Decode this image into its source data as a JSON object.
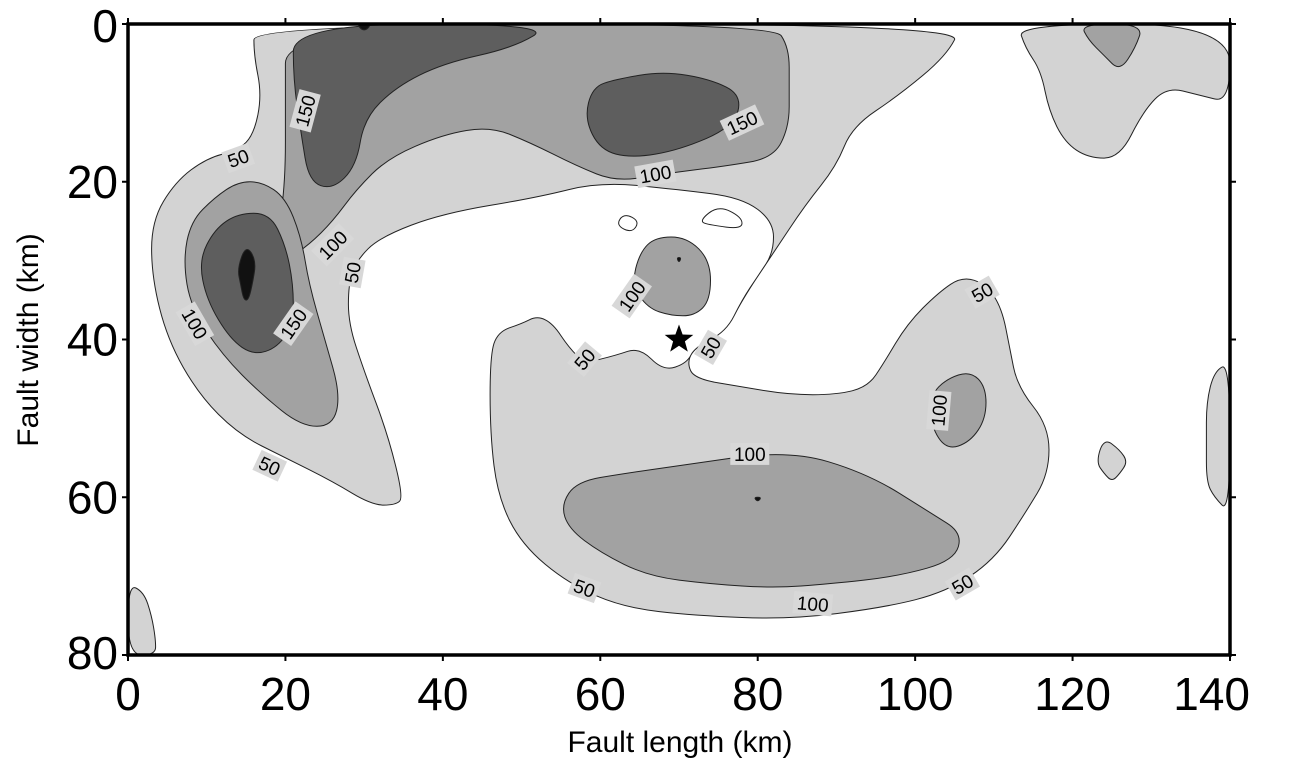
{
  "chart_data": {
    "type": "contour",
    "xlabel": "Fault length (km)",
    "ylabel": "Fault width (km)",
    "xlim": [
      0,
      140
    ],
    "ylim": [
      0,
      80
    ],
    "y_inverted": true,
    "x_ticks": [
      "0",
      "20",
      "40",
      "60",
      "80",
      "100",
      "120",
      "140"
    ],
    "y_ticks": [
      "0",
      "20",
      "40",
      "60",
      "80"
    ],
    "contour_levels": [
      50,
      100,
      150
    ],
    "fill_colors": {
      "below_50": "#ffffff",
      "50_100": "#d3d3d3",
      "100_150": "#a2a2a2",
      "150_200": "#5e5e5e",
      "above_200": "#111111"
    },
    "contour_labels": [
      {
        "text": "150",
        "x": 22.5,
        "y": 11,
        "angle": -75
      },
      {
        "text": "50",
        "x": 14,
        "y": 17,
        "angle": -20
      },
      {
        "text": "100",
        "x": 26,
        "y": 28,
        "angle": -45
      },
      {
        "text": "50",
        "x": 28.5,
        "y": 31.5,
        "angle": -80
      },
      {
        "text": "100",
        "x": 8.5,
        "y": 38,
        "angle": 60
      },
      {
        "text": "150",
        "x": 21,
        "y": 38,
        "angle": -55
      },
      {
        "text": "50",
        "x": 18,
        "y": 56,
        "angle": 25
      },
      {
        "text": "150",
        "x": 78,
        "y": 12.5,
        "angle": -25
      },
      {
        "text": "100",
        "x": 67,
        "y": 19,
        "angle": -10
      },
      {
        "text": "100",
        "x": 64,
        "y": 34.5,
        "angle": -55
      },
      {
        "text": "50",
        "x": 74,
        "y": 41,
        "angle": -60
      },
      {
        "text": "50",
        "x": 58,
        "y": 42.5,
        "angle": -50
      },
      {
        "text": "50",
        "x": 108.5,
        "y": 34,
        "angle": -30
      },
      {
        "text": "100",
        "x": 103,
        "y": 49,
        "angle": -85
      },
      {
        "text": "100",
        "x": 79,
        "y": 54.5,
        "angle": 0
      },
      {
        "text": "100",
        "x": 87,
        "y": 73.5,
        "angle": 5
      },
      {
        "text": "50",
        "x": 58,
        "y": 71.5,
        "angle": 20
      },
      {
        "text": "50",
        "x": 106,
        "y": 71,
        "angle": -30
      }
    ],
    "markers": [
      {
        "type": "star",
        "x": 70,
        "y": 40
      }
    ]
  }
}
